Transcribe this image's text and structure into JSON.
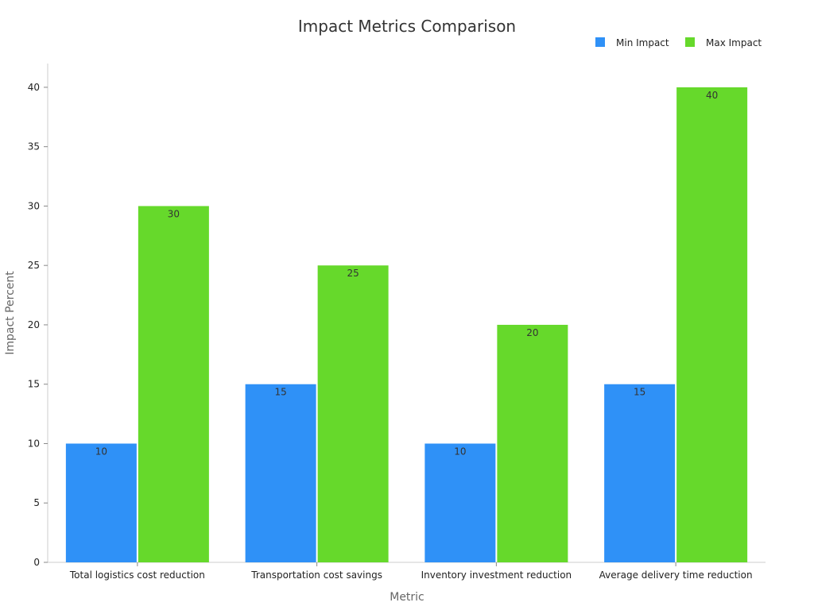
{
  "chart_data": {
    "type": "bar",
    "title": "Impact Metrics Comparison",
    "xlabel": "Metric",
    "ylabel": "Impact Percent",
    "categories": [
      "Total logistics cost reduction",
      "Transportation cost savings",
      "Inventory investment reduction",
      "Average delivery time reduction"
    ],
    "series": [
      {
        "name": "Min Impact",
        "color": "#2f91f7",
        "values": [
          10,
          15,
          10,
          15
        ]
      },
      {
        "name": "Max Impact",
        "color": "#66d92b",
        "values": [
          30,
          25,
          20,
          40
        ]
      }
    ],
    "ylim": [
      0,
      42
    ],
    "yticks": [
      0,
      5,
      10,
      15,
      20,
      25,
      30,
      35,
      40
    ],
    "grid": false,
    "legend_position": "top-right",
    "data_labels": true
  }
}
